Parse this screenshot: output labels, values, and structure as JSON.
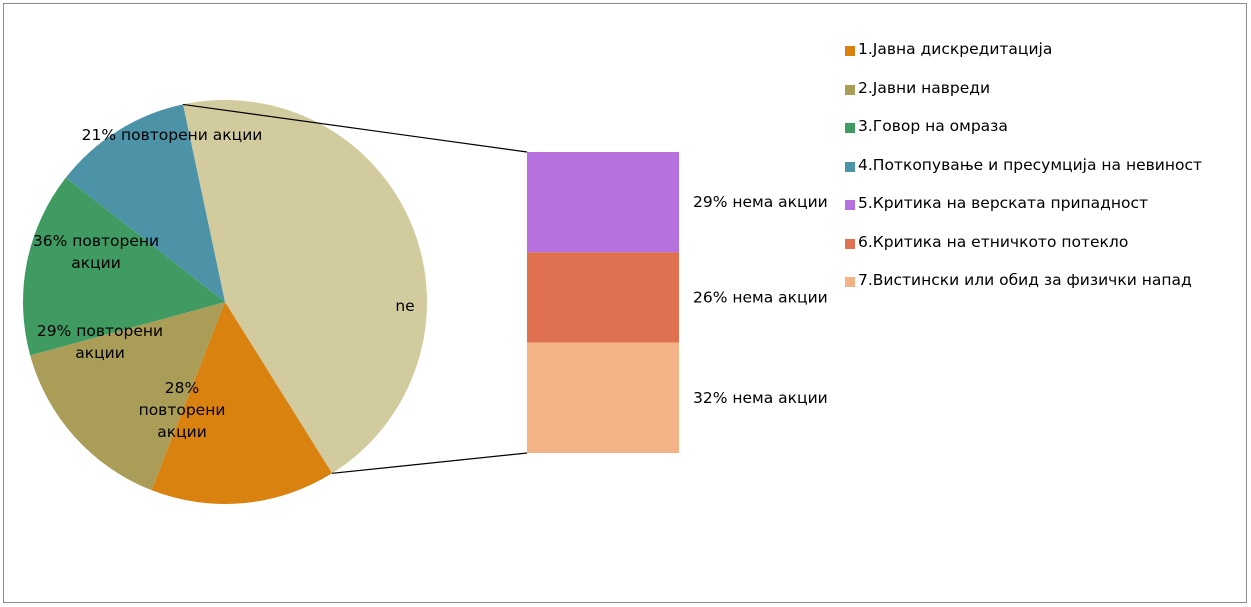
{
  "chart_data": {
    "type": "pie",
    "pie": {
      "slices": [
        {
          "key": "s1",
          "label": "28%\nповторени\nакции",
          "value": 1,
          "color": "#D9820F"
        },
        {
          "key": "s2",
          "label": "29% повторени\nакции",
          "value": 1,
          "color": "#A99D58"
        },
        {
          "key": "s3",
          "label": "36% повторени\nакции",
          "value": 1,
          "color": "#3F9B62"
        },
        {
          "key": "s4",
          "label": "21% повторени акции",
          "value": 0.75,
          "color": "#4D93A8"
        },
        {
          "key": "ne",
          "label": "ne",
          "value": 3,
          "color": "#D2CB9D"
        }
      ]
    },
    "bar": {
      "segments": [
        {
          "key": "b5",
          "label": "29% нема акции",
          "value": 1,
          "color": "#B771DE"
        },
        {
          "key": "b6",
          "label": "26% нема акции",
          "value": 0.9,
          "color": "#DF7150"
        },
        {
          "key": "b7",
          "label": "32% нема акции",
          "value": 1.1,
          "color": "#F4B386"
        }
      ]
    },
    "legend": {
      "position": "right",
      "entries": [
        {
          "label": "1.Јавна дискредитација",
          "color": "#D9820F"
        },
        {
          "label": "2.Јавни навреди",
          "color": "#A99D58"
        },
        {
          "label": "3.Говор на омраза",
          "color": "#3F9B62"
        },
        {
          "label": "4.Поткопување и пресумција на невиност",
          "color": "#4D93A8"
        },
        {
          "label": "5.Критика на верската припадност",
          "color": "#B771DE"
        },
        {
          "label": "6.Критика на етничкото потекло",
          "color": "#DF7150"
        },
        {
          "label": "7.Вистински или обид за физички напад",
          "color": "#F4B386"
        }
      ]
    }
  }
}
